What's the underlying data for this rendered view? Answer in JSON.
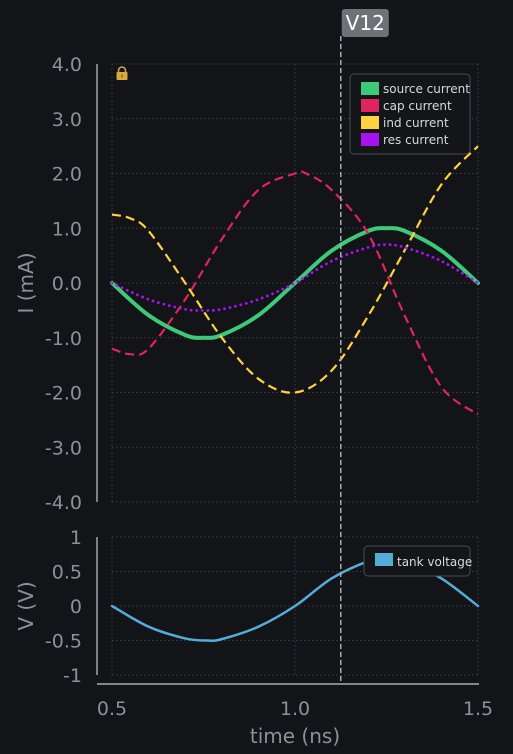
{
  "chart_data": [
    {
      "type": "line",
      "title": "",
      "xlabel": "",
      "ylabel": "I (mA)",
      "xlim": [
        0.5,
        1.5
      ],
      "ylim": [
        -4,
        4
      ],
      "yticks": [
        "4.0",
        "3.0",
        "2.0",
        "1.0",
        "0.0",
        "-1.0",
        "-2.0",
        "-3.0",
        "-4.0"
      ],
      "grid": true,
      "legend_position": "top-right",
      "series": [
        {
          "name": "source current",
          "color": "#3ec97a",
          "style": "solid",
          "x": [
            0.5,
            0.6,
            0.7,
            0.75,
            0.8,
            0.9,
            1.0,
            1.1,
            1.2,
            1.25,
            1.3,
            1.4,
            1.5
          ],
          "values": [
            0.0,
            -0.59,
            -0.95,
            -1.0,
            -0.95,
            -0.59,
            0.0,
            0.59,
            0.95,
            1.0,
            0.95,
            0.59,
            0.0
          ]
        },
        {
          "name": "cap current",
          "color": "#e0245e",
          "style": "dashed",
          "x": [
            0.5,
            0.55,
            0.6,
            0.7,
            0.8,
            0.9,
            1.0,
            1.03,
            1.1,
            1.2,
            1.3,
            1.4,
            1.5
          ],
          "values": [
            -1.2,
            -1.3,
            -1.2,
            -0.3,
            0.8,
            1.7,
            2.0,
            2.0,
            1.7,
            0.9,
            -0.6,
            -1.9,
            -2.4
          ]
        },
        {
          "name": "ind current",
          "color": "#ffd23f",
          "style": "dashed",
          "x": [
            0.5,
            0.55,
            0.6,
            0.7,
            0.8,
            0.9,
            1.0,
            1.1,
            1.2,
            1.3,
            1.4,
            1.5
          ],
          "values": [
            1.25,
            1.18,
            0.95,
            0.0,
            -1.0,
            -1.75,
            -2.0,
            -1.6,
            -0.6,
            0.6,
            1.8,
            2.5
          ]
        },
        {
          "name": "res current",
          "color": "#a812f0",
          "style": "dotted",
          "x": [
            0.5,
            0.6,
            0.7,
            0.75,
            0.8,
            0.9,
            1.0,
            1.1,
            1.2,
            1.25,
            1.3,
            1.4,
            1.5
          ],
          "values": [
            0.0,
            -0.3,
            -0.48,
            -0.5,
            -0.48,
            -0.3,
            0.0,
            0.4,
            0.65,
            0.7,
            0.65,
            0.4,
            0.0
          ]
        }
      ]
    },
    {
      "type": "line",
      "title": "",
      "xlabel": "time (ns)",
      "ylabel": "V (V)",
      "xlim": [
        0.5,
        1.5
      ],
      "ylim": [
        -1,
        1
      ],
      "xticks": [
        "0.5",
        "1.0",
        "1.5"
      ],
      "yticks": [
        "1",
        "0.5",
        "0",
        "-0.5",
        "-1"
      ],
      "grid": true,
      "legend_position": "top-right",
      "series": [
        {
          "name": "tank voltage",
          "color": "#55acd8",
          "style": "solid",
          "x": [
            0.5,
            0.6,
            0.7,
            0.76,
            0.8,
            0.9,
            1.0,
            1.1,
            1.2,
            1.25,
            1.3,
            1.4,
            1.5
          ],
          "values": [
            0.0,
            -0.3,
            -0.47,
            -0.5,
            -0.48,
            -0.3,
            0.0,
            0.4,
            0.65,
            0.7,
            0.65,
            0.4,
            0.0
          ]
        }
      ]
    }
  ],
  "cursor": {
    "label": "V12",
    "x": 1.125
  },
  "lock_icon": "padlock-icon"
}
